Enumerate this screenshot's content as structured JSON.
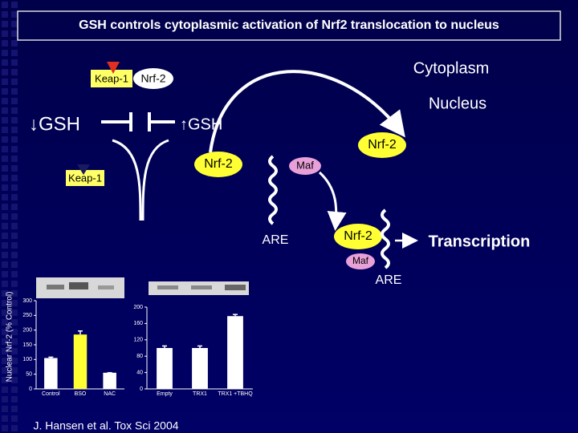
{
  "title": "GSH controls cytoplasmic activation of Nrf2 translocation to nucleus",
  "diagram": {
    "cytoplasm": "Cytoplasm",
    "nucleus": "Nucleus",
    "gsh_low": "↓GSH",
    "gsh_high": "↑GSH",
    "keap1_top": "Keap-1",
    "nrf2_top": "Nrf-2",
    "nrf2_mid": "Nrf-2",
    "keap1_mid": "Keap-1",
    "maf_mid": "Maf",
    "are_mid": "ARE",
    "nrf2_right": "Nrf-2",
    "nrf2_nuc": "Nrf-2",
    "maf_nuc": "Maf",
    "are_nuc": "ARE",
    "transcription": "Transcription"
  },
  "chart_data": [
    {
      "type": "bar",
      "y_label": "Nuclear Nrf-2 (% Control)",
      "categories": [
        "Control",
        "BSO",
        "NAC"
      ],
      "values": [
        105,
        185,
        55
      ],
      "errors": [
        3,
        12,
        0
      ],
      "colors": [
        "#ffffff",
        "#ffff33",
        "#ffffff"
      ],
      "ylim": [
        0,
        300
      ],
      "yticks": [
        0,
        50,
        100,
        150,
        200,
        250,
        300
      ]
    },
    {
      "type": "bar",
      "categories": [
        "Empty",
        "TRX1",
        "TRX1 +TBHQ"
      ],
      "values": [
        100,
        100,
        178
      ],
      "errors": [
        5,
        5,
        4
      ],
      "colors": [
        "#ffffff",
        "#ffffff",
        "#ffffff"
      ],
      "ylim": [
        0,
        200
      ],
      "yticks": [
        0,
        40,
        80,
        120,
        160,
        200
      ]
    }
  ],
  "citation": "J. Hansen et al. Tox Sci 2004"
}
